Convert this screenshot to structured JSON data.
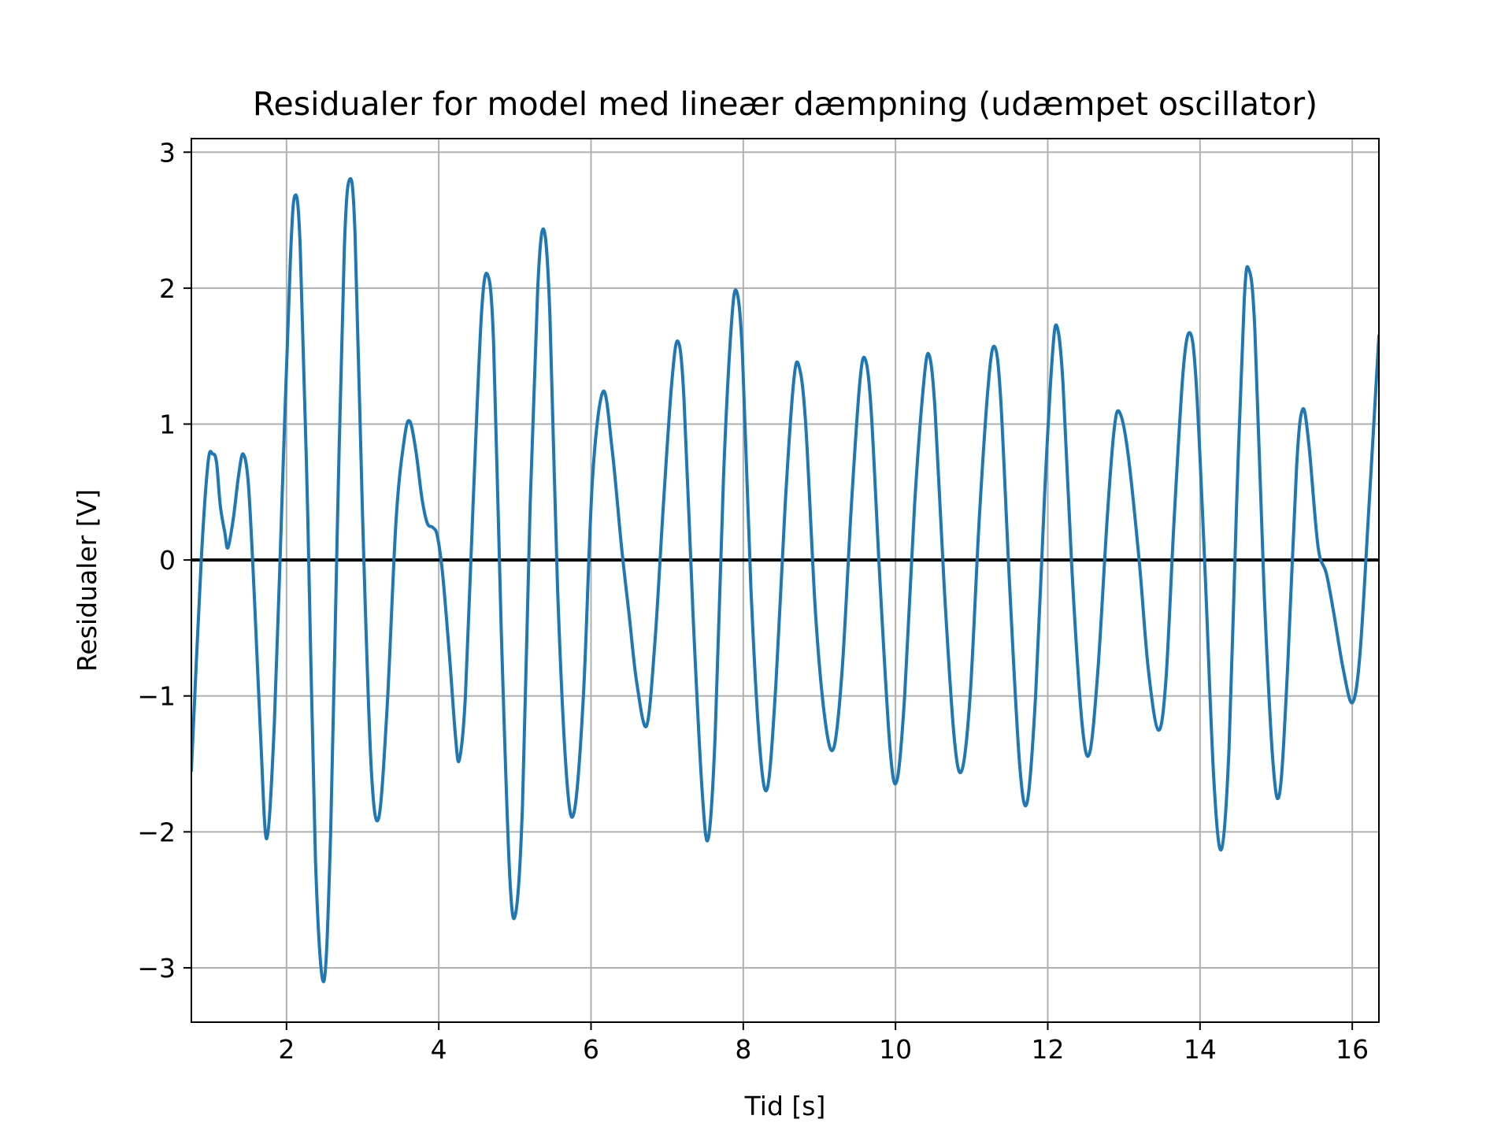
{
  "chart_data": {
    "type": "line",
    "title": "Residualer for model med lineær dæmpning (udæmpet oscillator)",
    "xlabel": "Tid [s]",
    "ylabel": "Residualer [V]",
    "xlim": [
      0.75,
      16.35
    ],
    "ylim": [
      -3.4,
      3.1
    ],
    "xticks": [
      2,
      4,
      6,
      8,
      10,
      12,
      14,
      16
    ],
    "yticks": [
      -3,
      -2,
      -1,
      0,
      1,
      2,
      3
    ],
    "xtick_labels": [
      "2",
      "4",
      "6",
      "8",
      "10",
      "12",
      "14",
      "16"
    ],
    "ytick_labels": [
      "−3",
      "−2",
      "−1",
      "0",
      "1",
      "2",
      "3"
    ],
    "grid": true,
    "legend": "none",
    "reference_line": {
      "y": 0,
      "color": "#000000"
    },
    "series": [
      {
        "color": "#1f77b4",
        "points": [
          [
            0.75,
            -1.55
          ],
          [
            0.88,
            0.0
          ],
          [
            0.97,
            0.72
          ],
          [
            1.03,
            0.78
          ],
          [
            1.08,
            0.72
          ],
          [
            1.13,
            0.4
          ],
          [
            1.19,
            0.2
          ],
          [
            1.23,
            0.09
          ],
          [
            1.3,
            0.3
          ],
          [
            1.37,
            0.62
          ],
          [
            1.43,
            0.78
          ],
          [
            1.5,
            0.55
          ],
          [
            1.58,
            -0.3
          ],
          [
            1.66,
            -1.3
          ],
          [
            1.74,
            -2.05
          ],
          [
            1.84,
            -1.2
          ],
          [
            1.95,
            0.6
          ],
          [
            2.05,
            2.2
          ],
          [
            2.11,
            2.68
          ],
          [
            2.18,
            2.3
          ],
          [
            2.28,
            0.3
          ],
          [
            2.38,
            -2.2
          ],
          [
            2.49,
            -3.1
          ],
          [
            2.58,
            -2.0
          ],
          [
            2.67,
            0.3
          ],
          [
            2.76,
            2.3
          ],
          [
            2.83,
            2.8
          ],
          [
            2.9,
            2.4
          ],
          [
            3.0,
            0.3
          ],
          [
            3.11,
            -1.5
          ],
          [
            3.21,
            -1.9
          ],
          [
            3.32,
            -1.1
          ],
          [
            3.44,
            0.3
          ],
          [
            3.55,
            0.9
          ],
          [
            3.62,
            1.02
          ],
          [
            3.7,
            0.8
          ],
          [
            3.78,
            0.45
          ],
          [
            3.85,
            0.27
          ],
          [
            3.92,
            0.24
          ],
          [
            3.98,
            0.18
          ],
          [
            4.05,
            -0.1
          ],
          [
            4.14,
            -0.7
          ],
          [
            4.22,
            -1.3
          ],
          [
            4.27,
            -1.47
          ],
          [
            4.35,
            -1.0
          ],
          [
            4.45,
            0.4
          ],
          [
            4.56,
            1.8
          ],
          [
            4.64,
            2.1
          ],
          [
            4.72,
            1.6
          ],
          [
            4.82,
            -0.5
          ],
          [
            4.93,
            -2.3
          ],
          [
            5.01,
            -2.6
          ],
          [
            5.1,
            -1.8
          ],
          [
            5.2,
            0.4
          ],
          [
            5.3,
            2.0
          ],
          [
            5.38,
            2.43
          ],
          [
            5.46,
            1.8
          ],
          [
            5.56,
            -0.2
          ],
          [
            5.68,
            -1.6
          ],
          [
            5.78,
            -1.85
          ],
          [
            5.9,
            -1.0
          ],
          [
            6.02,
            0.6
          ],
          [
            6.16,
            1.24
          ],
          [
            6.28,
            0.8
          ],
          [
            6.4,
            0.1
          ],
          [
            6.5,
            -0.4
          ],
          [
            6.6,
            -0.9
          ],
          [
            6.73,
            -1.22
          ],
          [
            6.84,
            -0.6
          ],
          [
            6.95,
            0.4
          ],
          [
            7.06,
            1.3
          ],
          [
            7.14,
            1.61
          ],
          [
            7.22,
            1.2
          ],
          [
            7.34,
            -0.4
          ],
          [
            7.46,
            -1.7
          ],
          [
            7.54,
            -2.05
          ],
          [
            7.63,
            -1.3
          ],
          [
            7.74,
            0.6
          ],
          [
            7.84,
            1.7
          ],
          [
            7.91,
            1.98
          ],
          [
            7.99,
            1.5
          ],
          [
            8.1,
            -0.2
          ],
          [
            8.22,
            -1.4
          ],
          [
            8.32,
            -1.67
          ],
          [
            8.43,
            -0.9
          ],
          [
            8.55,
            0.4
          ],
          [
            8.66,
            1.3
          ],
          [
            8.73,
            1.43
          ],
          [
            8.82,
            1.0
          ],
          [
            8.95,
            -0.4
          ],
          [
            9.08,
            -1.2
          ],
          [
            9.19,
            -1.38
          ],
          [
            9.3,
            -0.8
          ],
          [
            9.42,
            0.4
          ],
          [
            9.53,
            1.3
          ],
          [
            9.6,
            1.48
          ],
          [
            9.68,
            1.1
          ],
          [
            9.8,
            -0.2
          ],
          [
            9.93,
            -1.4
          ],
          [
            10.02,
            -1.62
          ],
          [
            10.12,
            -1.0
          ],
          [
            10.25,
            0.4
          ],
          [
            10.37,
            1.3
          ],
          [
            10.44,
            1.51
          ],
          [
            10.52,
            1.1
          ],
          [
            10.64,
            -0.2
          ],
          [
            10.77,
            -1.3
          ],
          [
            10.87,
            -1.55
          ],
          [
            10.98,
            -1.0
          ],
          [
            11.1,
            0.3
          ],
          [
            11.22,
            1.3
          ],
          [
            11.3,
            1.57
          ],
          [
            11.38,
            1.2
          ],
          [
            11.5,
            -0.2
          ],
          [
            11.63,
            -1.5
          ],
          [
            11.73,
            -1.78
          ],
          [
            11.84,
            -1.0
          ],
          [
            11.96,
            0.5
          ],
          [
            12.06,
            1.5
          ],
          [
            12.12,
            1.72
          ],
          [
            12.2,
            1.3
          ],
          [
            12.32,
            -0.1
          ],
          [
            12.45,
            -1.2
          ],
          [
            12.55,
            -1.42
          ],
          [
            12.66,
            -0.8
          ],
          [
            12.78,
            0.3
          ],
          [
            12.87,
            0.95
          ],
          [
            12.94,
            1.09
          ],
          [
            13.05,
            0.8
          ],
          [
            13.2,
            0.0
          ],
          [
            13.32,
            -0.8
          ],
          [
            13.45,
            -1.25
          ],
          [
            13.55,
            -0.9
          ],
          [
            13.66,
            0.3
          ],
          [
            13.78,
            1.4
          ],
          [
            13.87,
            1.67
          ],
          [
            13.95,
            1.3
          ],
          [
            14.06,
            0.0
          ],
          [
            14.18,
            -1.6
          ],
          [
            14.28,
            -2.13
          ],
          [
            14.38,
            -1.4
          ],
          [
            14.48,
            0.4
          ],
          [
            14.58,
            1.9
          ],
          [
            14.64,
            2.14
          ],
          [
            14.72,
            1.7
          ],
          [
            14.84,
            -0.2
          ],
          [
            14.96,
            -1.5
          ],
          [
            15.05,
            -1.7
          ],
          [
            15.15,
            -0.8
          ],
          [
            15.27,
            0.7
          ],
          [
            15.35,
            1.11
          ],
          [
            15.43,
            0.85
          ],
          [
            15.55,
            0.1
          ],
          [
            15.66,
            -0.1
          ],
          [
            15.76,
            -0.4
          ],
          [
            15.88,
            -0.8
          ],
          [
            16.0,
            -1.05
          ],
          [
            16.1,
            -0.7
          ],
          [
            16.22,
            0.4
          ],
          [
            16.35,
            1.65
          ]
        ]
      }
    ]
  }
}
